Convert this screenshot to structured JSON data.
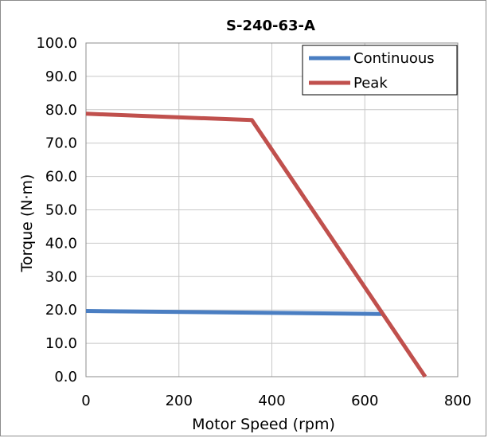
{
  "chart_data": {
    "type": "line",
    "title": "S-240-63-A",
    "xlabel": "Motor Speed (rpm)",
    "ylabel": "Torque (N·m)",
    "xlim": [
      0,
      800
    ],
    "ylim": [
      0,
      100
    ],
    "xticks": [
      0,
      200,
      400,
      600,
      800
    ],
    "xtick_labels": [
      "0",
      "200",
      "400",
      "600",
      "800"
    ],
    "yticks": [
      0,
      10,
      20,
      30,
      40,
      50,
      60,
      70,
      80,
      90,
      100
    ],
    "ytick_labels": [
      "0.0",
      "10.0",
      "20.0",
      "30.0",
      "40.0",
      "50.0",
      "60.0",
      "70.0",
      "80.0",
      "90.0",
      "100.0"
    ],
    "grid": true,
    "legend": "top-right",
    "series": [
      {
        "name": "Continuous",
        "color": "#4a7ec2",
        "points": [
          [
            0,
            19.7
          ],
          [
            638,
            18.8
          ]
        ]
      },
      {
        "name": "Peak",
        "color": "#c0504d",
        "points": [
          [
            0,
            78.8
          ],
          [
            357,
            76.9
          ],
          [
            730,
            0
          ]
        ]
      }
    ]
  }
}
